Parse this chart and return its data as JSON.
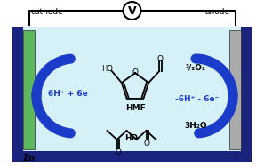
{
  "bg_color": "#ffffff",
  "cell_bg": "#d6f0f8",
  "cell_border": "#1a237e",
  "cathode_color": "#5cb85c",
  "anode_color": "#aaaaaa",
  "arrow_color": "#1a3cc8",
  "text_color_blue": "#1a3cc8",
  "cathode_label": "cathode",
  "anode_label": "anode",
  "zn_label": "Zn",
  "hmf_label": "HMF",
  "hd_label": "HD",
  "left_reaction": "6H⁺ + 6e⁻",
  "right_reaction1": "³/₂O₂",
  "right_reaction2": "-6H⁺ - 6e⁻",
  "right_reaction3": "3H₂O",
  "voltmeter_label": "V",
  "figsize": [
    2.97,
    1.89
  ],
  "dpi": 100
}
